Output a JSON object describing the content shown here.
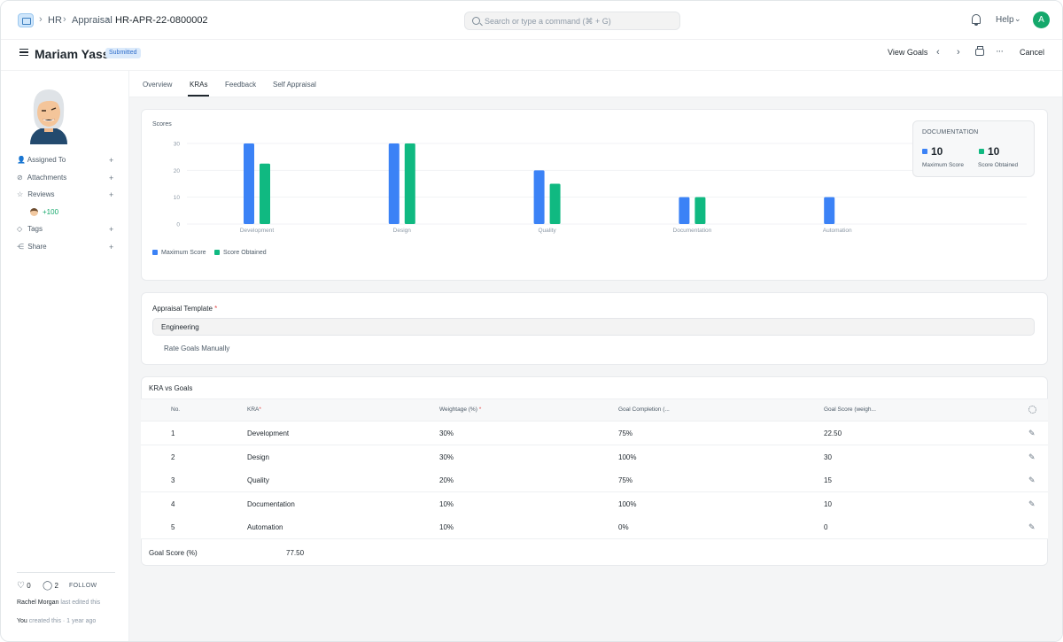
{
  "navbar": {
    "breadcrumbs": [
      "HR",
      "Appraisal",
      "HR-APR-22-0800002"
    ],
    "search_placeholder": "Search or type a command (⌘ + G)",
    "help_label": "Help",
    "avatar_initial": "A"
  },
  "page_head": {
    "title": "Mariam Yasser",
    "status": "Submitted",
    "view_goals": "View Goals",
    "cancel": "Cancel"
  },
  "sidebar": {
    "items": [
      {
        "label": "Assigned To",
        "icon": "user-icon"
      },
      {
        "label": "Attachments",
        "icon": "paperclip-icon"
      },
      {
        "label": "Reviews",
        "icon": "star-icon"
      },
      {
        "label": "Tags",
        "icon": "tag-icon"
      },
      {
        "label": "Share",
        "icon": "share-icon"
      }
    ],
    "review_score": "+100",
    "likes": "0",
    "comments": "2",
    "follow": "FOLLOW",
    "last_edited": "Rachel Morgan",
    "last_edited_suffix": "last edited this",
    "created_by": "You",
    "created_suffix": "created this · 1 year ago"
  },
  "tabs": [
    "Overview",
    "KRAs",
    "Feedback",
    "Self Appraisal"
  ],
  "chart_data": {
    "type": "bar",
    "title": "Scores",
    "categories": [
      "Development",
      "Design",
      "Quality",
      "Documentation",
      "Automation"
    ],
    "series": [
      {
        "name": "Maximum Score",
        "values": [
          30,
          30,
          20,
          10,
          10
        ],
        "color": "#3b82f6"
      },
      {
        "name": "Score Obtained",
        "values": [
          22.5,
          30,
          15,
          10,
          0
        ],
        "color": "#10b981"
      }
    ],
    "yticks": [
      "30",
      "20",
      "10",
      "0"
    ],
    "ylim": [
      0,
      30
    ],
    "legend_position": "bottom-left",
    "tooltip": {
      "category": "DOCUMENTATION",
      "max_score": "10",
      "score_obtained": "10",
      "max_label": "Maximum Score",
      "obtained_label": "Score Obtained"
    }
  },
  "template": {
    "label": "Appraisal Template",
    "value": "Engineering",
    "checkbox_label": "Rate Goals Manually"
  },
  "kra_table": {
    "title": "KRA vs Goals",
    "headers": [
      "No.",
      "KRA",
      "Weightage (%)",
      "Goal Completion (...",
      "Goal Score (weigh..."
    ],
    "rows": [
      {
        "no": "1",
        "kra": "Development",
        "weightage": "30%",
        "completion": "75%",
        "score": "22.50"
      },
      {
        "no": "2",
        "kra": "Design",
        "weightage": "30%",
        "completion": "100%",
        "score": "30"
      },
      {
        "no": "3",
        "kra": "Quality",
        "weightage": "20%",
        "completion": "75%",
        "score": "15"
      },
      {
        "no": "4",
        "kra": "Documentation",
        "weightage": "10%",
        "completion": "100%",
        "score": "10"
      },
      {
        "no": "5",
        "kra": "Automation",
        "weightage": "10%",
        "completion": "0%",
        "score": "0"
      }
    ],
    "total_label": "Goal Score (%)",
    "total_value": "77.50"
  }
}
